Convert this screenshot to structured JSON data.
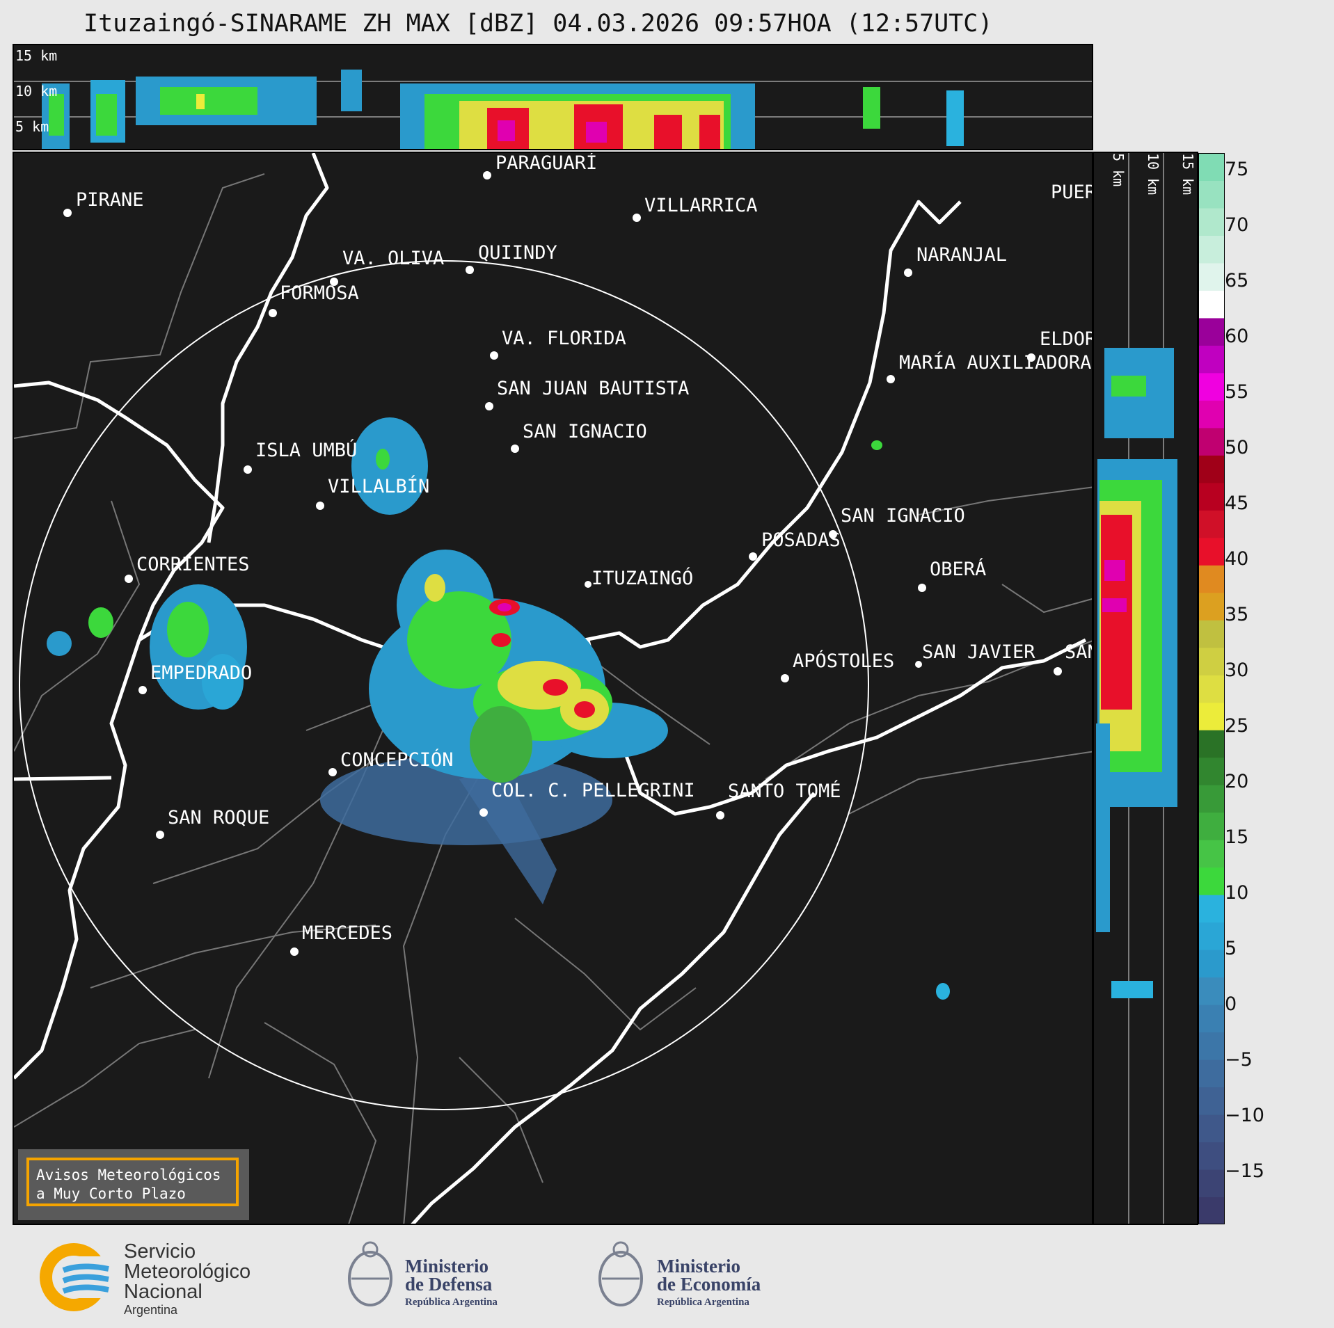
{
  "title": "Ituzaingó-SINARAME ZH MAX [dBZ] 04.03.2026 09:57HOA (12:57UTC)",
  "top_panel": {
    "height_labels": [
      "15 km",
      "10 km",
      "5 km"
    ]
  },
  "side_panel": {
    "height_labels": [
      "5 km",
      "10 km",
      "15 km"
    ]
  },
  "colorbar": {
    "unit": "dBZ",
    "ticks": [
      "75",
      "70",
      "65",
      "60",
      "55",
      "50",
      "45",
      "40",
      "35",
      "30",
      "25",
      "20",
      "15",
      "10",
      "5",
      "0",
      "−5",
      "−10",
      "−15"
    ],
    "colors": [
      "#3a3a6a",
      "#3c4474",
      "#3e4e80",
      "#3f588a",
      "#3f6294",
      "#3e6c9e",
      "#3c76a8",
      "#3a80b2",
      "#3a8cbc",
      "#2b9acc",
      "#2aa6d6",
      "#2ab2de",
      "#3cd83c",
      "#46c446",
      "#3fae3f",
      "#389a38",
      "#31862f",
      "#2a7226",
      "#ecec3a",
      "#dede42",
      "#cfcf42",
      "#c0c040",
      "#dca020",
      "#e08a20",
      "#e8102a",
      "#d01028",
      "#b80020",
      "#a00018",
      "#c00070",
      "#e000b0",
      "#f000e0",
      "#c000c0",
      "#9a009a",
      "#ffffff",
      "#e0f4ec",
      "#c8eedc",
      "#b0e8cc",
      "#98e2c0",
      "#80dcb4"
    ]
  },
  "map": {
    "range_ring": true,
    "places": [
      {
        "name": "PARAGUARÍ"
      },
      {
        "name": "PIRANE"
      },
      {
        "name": "VILLARRICA"
      },
      {
        "name": "VA. OLIVA"
      },
      {
        "name": "QUIINDY"
      },
      {
        "name": "NARANJAL"
      },
      {
        "name": "FORMOSA"
      },
      {
        "name": "VA. FLORIDA"
      },
      {
        "name": "ELDORADO"
      },
      {
        "name": "MARÍA AUXILIADORA"
      },
      {
        "name": "SAN JUAN BAUTISTA"
      },
      {
        "name": "SAN IGNACIO"
      },
      {
        "name": "ISLA UMBÚ"
      },
      {
        "name": "VILLALBÍN"
      },
      {
        "name": "SAN IGNACIO"
      },
      {
        "name": "POSADAS"
      },
      {
        "name": "CORRIENTES"
      },
      {
        "name": "ITUZAINGÓ"
      },
      {
        "name": "OBERÁ"
      },
      {
        "name": "APÓSTOLES"
      },
      {
        "name": "SAN JAVIER"
      },
      {
        "name": "SAN"
      },
      {
        "name": "EMPEDRADO"
      },
      {
        "name": "CONCEPCIÓN"
      },
      {
        "name": "COL. C. PELLEGRINI"
      },
      {
        "name": "SANTO TOMÉ"
      },
      {
        "name": "SAN ROQUE"
      },
      {
        "name": "MERCEDES"
      },
      {
        "name": "PUERTO"
      }
    ]
  },
  "aviso": {
    "line1": "Avisos Meteorológicos",
    "line2": "a Muy Corto Plazo"
  },
  "footer": {
    "smn": {
      "line1": "Servicio",
      "line2": "Meteorológico",
      "line3": "Nacional",
      "line4": "Argentina"
    },
    "defensa": {
      "line1": "Ministerio",
      "line2": "de Defensa",
      "sub": "República Argentina"
    },
    "economia": {
      "line1": "Ministerio",
      "line2": "de Economía",
      "sub": "República Argentina"
    }
  }
}
